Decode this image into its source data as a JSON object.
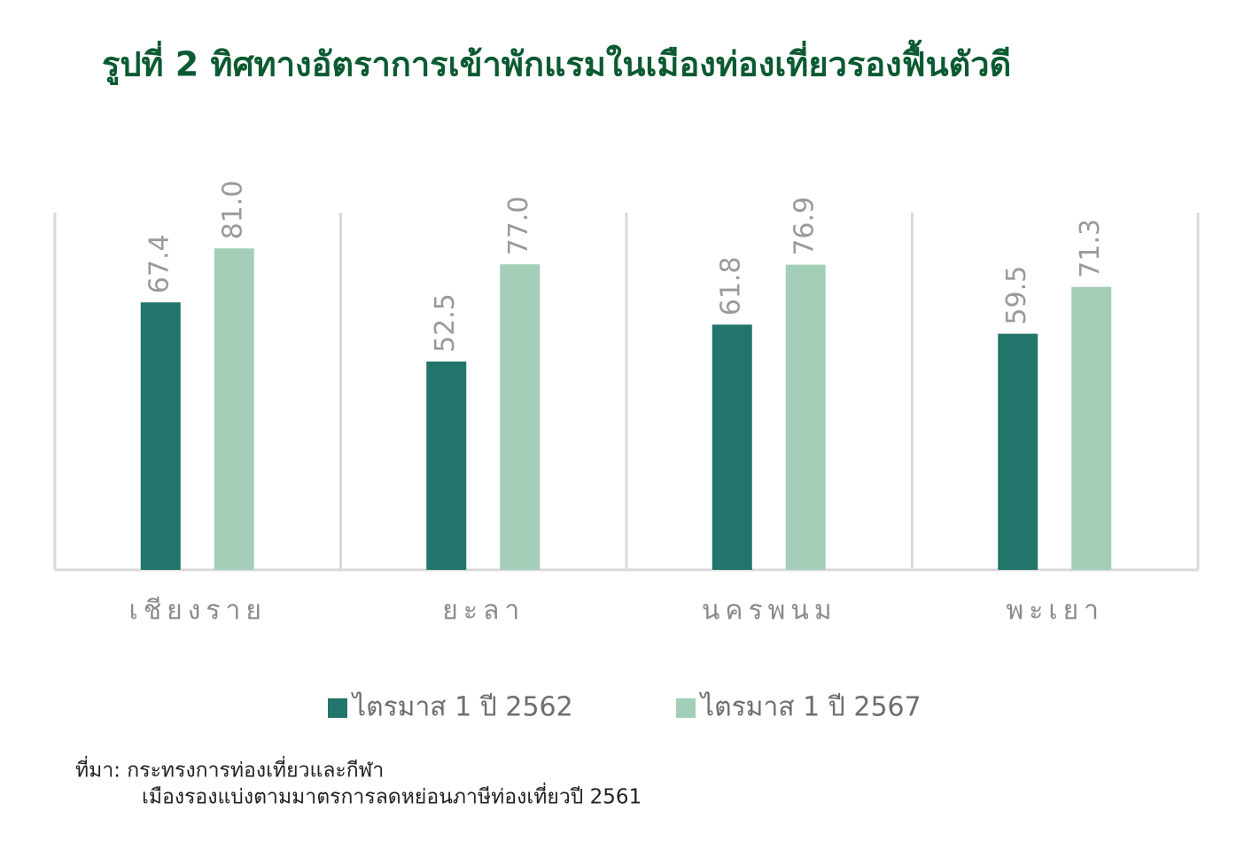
{
  "chart_data": {
    "type": "bar",
    "title": "รูปที่ 2 ทิศทางอัตราการเข้าพักแรมในเมืองท่องเที่ยวรองฟื้นตัวดี",
    "categories": [
      "เชียงราย",
      "ยะลา",
      "นครพนม",
      "พะเยา"
    ],
    "series": [
      {
        "name": "ไตรมาส 1 ปี 2562",
        "color": "#21756a",
        "values": [
          67.4,
          52.5,
          61.8,
          59.5
        ],
        "value_labels": [
          "67.4",
          "52.5",
          "61.8",
          "59.5"
        ]
      },
      {
        "name": "ไตรมาส 1 ปี 2567",
        "color": "#a3cfb8",
        "values": [
          81.0,
          77.0,
          76.9,
          71.3
        ],
        "value_labels": [
          "81.0",
          "77.0",
          "76.9",
          "71.3"
        ]
      }
    ],
    "ylim": [
      0,
      90
    ],
    "source": [
      "ที่มา: กระทรงการท่องเที่ยวและกีฬา",
      "เมืองรองแบ่งตามมาตรการลดหย่อนภาษีท่องเที่ยวปี 2561"
    ]
  }
}
